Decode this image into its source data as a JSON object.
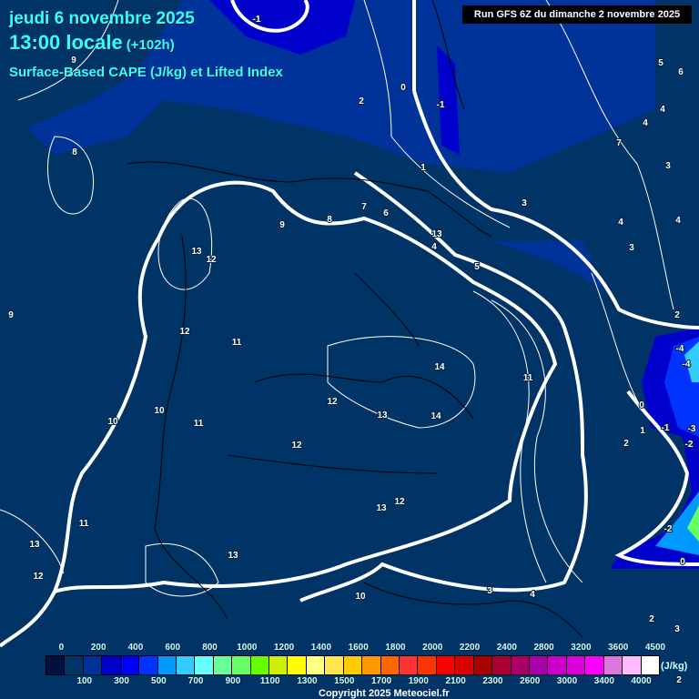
{
  "header": {
    "date": "jeudi 6 novembre 2025",
    "time": "13:00 locale",
    "lead": "(+102h)",
    "parameter": "Surface-Based CAPE (J/kg) et Lifted Index",
    "run": "Run GFS 6Z du dimanche 2 novembre 2025"
  },
  "colors": {
    "background": "#003366",
    "contour": "#ffffff",
    "border": "#000000",
    "title": "#33ffff"
  },
  "legend": {
    "unit": "(J/kg)",
    "top_labels": [
      "0",
      "200",
      "400",
      "600",
      "800",
      "1000",
      "1200",
      "1400",
      "1600",
      "1800",
      "2000",
      "2200",
      "2400",
      "2800",
      "3200",
      "3600",
      "4500"
    ],
    "bottom_labels": [
      "100",
      "300",
      "500",
      "700",
      "900",
      "1100",
      "1300",
      "1500",
      "1700",
      "1900",
      "2100",
      "2300",
      "2600",
      "3000",
      "3400",
      "4000"
    ],
    "colors": [
      "#001040",
      "#003366",
      "#003399",
      "#0000cc",
      "#0000ff",
      "#0033ff",
      "#0099ff",
      "#33ccff",
      "#66ffff",
      "#66ff99",
      "#66ff66",
      "#66ff00",
      "#ccf000",
      "#ffff00",
      "#ffff80",
      "#ffe64d",
      "#ffcc00",
      "#ff9900",
      "#ff6600",
      "#ff3333",
      "#ff3300",
      "#ff0000",
      "#dd0000",
      "#aa0000",
      "#aa0033",
      "#aa0066",
      "#aa00aa",
      "#cc00cc",
      "#dd00dd",
      "#ff00ff",
      "#dd77dd",
      "#ffbbff",
      "#ffffff"
    ]
  },
  "lifted_index_labels": [
    "-1",
    "0",
    "-1",
    "1",
    "2",
    "9",
    "8",
    "9",
    "7",
    "6",
    "8",
    "9",
    "13",
    "12",
    "12",
    "11",
    "13",
    "4",
    "5",
    "3",
    "4",
    "3",
    "4",
    "4",
    "4",
    "5",
    "6",
    "7",
    "3",
    "2",
    "-4",
    "-4",
    "14",
    "14",
    "11",
    "12",
    "13",
    "10",
    "11",
    "12",
    "10",
    "11",
    "13",
    "12",
    "13",
    "12",
    "13",
    "0",
    "-1",
    "-3",
    "-2",
    "1",
    "2",
    "-2",
    "0",
    "10",
    "3",
    "4",
    "2",
    "3",
    "2"
  ],
  "copyright": "Copyright 2025 Meteociel.fr"
}
